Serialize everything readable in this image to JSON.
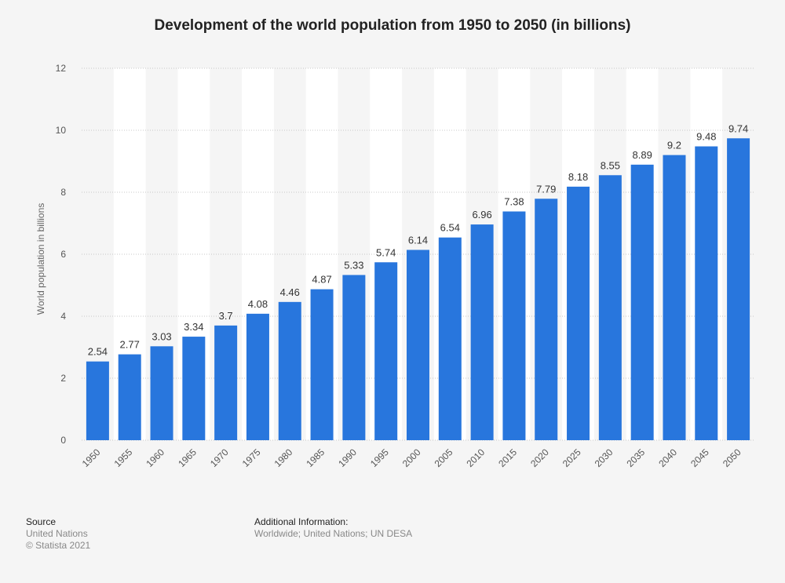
{
  "chart_data": {
    "type": "bar",
    "title": "Development of the world population from 1950 to 2050 (in billions)",
    "xlabel": "",
    "ylabel": "World population in billions",
    "ylim": [
      0,
      12
    ],
    "yticks": [
      0,
      2,
      4,
      6,
      8,
      10,
      12
    ],
    "grid": true,
    "categories": [
      "1950",
      "1955",
      "1960",
      "1965",
      "1970",
      "1975",
      "1980",
      "1985",
      "1990",
      "1995",
      "2000",
      "2005",
      "2010",
      "2015",
      "2020",
      "2025",
      "2030",
      "2035",
      "2040",
      "2045",
      "2050"
    ],
    "values": [
      2.54,
      2.77,
      3.03,
      3.34,
      3.7,
      4.08,
      4.46,
      4.87,
      5.33,
      5.74,
      6.14,
      6.54,
      6.96,
      7.38,
      7.79,
      8.18,
      8.55,
      8.89,
      9.2,
      9.48,
      9.74
    ],
    "value_labels": [
      "2.54",
      "2.77",
      "3.03",
      "3.34",
      "3.7",
      "4.08",
      "4.46",
      "4.87",
      "5.33",
      "5.74",
      "6.14",
      "6.54",
      "6.96",
      "7.38",
      "7.79",
      "8.18",
      "8.55",
      "8.89",
      "9.2",
      "9.48",
      "9.74"
    ],
    "colors": {
      "bar": "#2876dd",
      "band": "#ffffff",
      "grid": "#c8c8c8",
      "tick_text": "#555555",
      "label_text": "#333333"
    }
  },
  "footer": {
    "source_heading": "Source",
    "source_lines": [
      "United Nations",
      "© Statista 2021"
    ],
    "info_heading": "Additional Information:",
    "info_text": "Worldwide; United Nations; UN DESA"
  }
}
